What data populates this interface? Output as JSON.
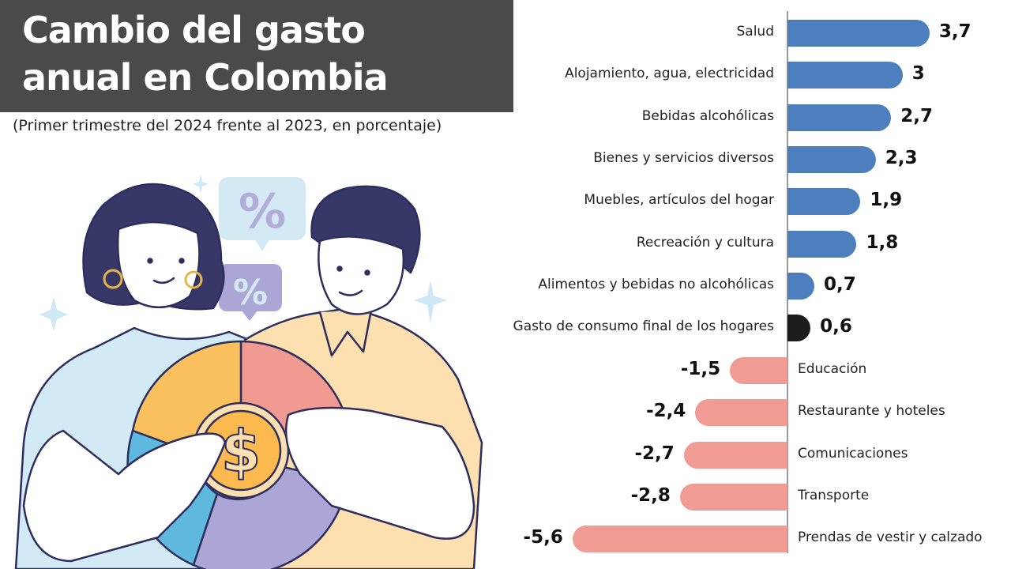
{
  "header": {
    "title_line1": "Cambio del gasto",
    "title_line2": "anual en Colombia",
    "subtitle": "(Primer trimestre del 2024 frente al 2023, en porcentaje)"
  },
  "colors": {
    "positive": "#4d7fbf",
    "negative": "#f09b94",
    "total": "#1c1c1c",
    "title_bg": "#4a4a4a",
    "axis": "#9a9a9a"
  },
  "chart_data": {
    "type": "bar",
    "orientation": "horizontal",
    "title": "Cambio del gasto anual en Colombia",
    "subtitle": "(Primer trimestre del 2024 frente al 2023, en porcentaje)",
    "xlabel": "",
    "ylabel": "",
    "grid": false,
    "legend": null,
    "xlim": [
      -5.6,
      3.7
    ],
    "categories": [
      "Salud",
      "Alojamiento, agua, electricidad",
      "Bebidas alcohólicas",
      "Bienes y servicios diversos",
      "Muebles, artículos del hogar",
      "Recreación y cultura",
      "Alimentos y bebidas no alcohólicas",
      "Gasto de consumo final de los hogares",
      "Educación",
      "Restaurante y hoteles",
      "Comunicaciones",
      "Transporte",
      "Prendas de vestir y calzado"
    ],
    "values": [
      3.7,
      3.0,
      2.7,
      2.3,
      1.9,
      1.8,
      0.7,
      0.6,
      -1.5,
      -2.4,
      -2.7,
      -2.8,
      -5.6
    ],
    "value_labels": [
      "3,7",
      "3",
      "2,7",
      "2,3",
      "1,9",
      "1,8",
      "0,7",
      "0,6",
      "-1,5",
      "-2,4",
      "-2,7",
      "-2,8",
      "-5,6"
    ],
    "highlight": {
      "category": "Gasto de consumo final de los hogares",
      "color": "#1c1c1c"
    }
  },
  "illustration": {
    "description": "Two people holding a donut chart with a dollar coin; percent speech bubbles",
    "bubble1_symbol": "%",
    "bubble2_symbol": "%",
    "coin_symbol": "$"
  }
}
